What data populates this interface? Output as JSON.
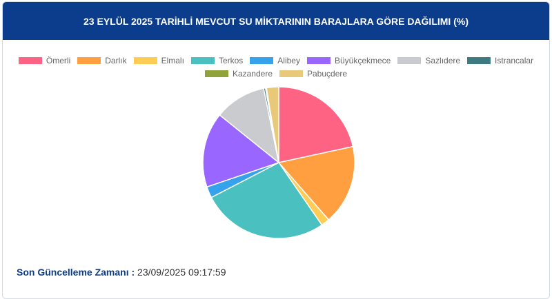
{
  "header": {
    "title": "23 EYLÜL 2025 TARİHLİ MEVCUT SU MİKTARININ BARAJLARA GÖRE DAĞILIMI (%)"
  },
  "chart_data": {
    "type": "pie",
    "categories": [
      "Ömerli",
      "Darlık",
      "Elmalı",
      "Terkos",
      "Alibey",
      "Büyükçekmece",
      "Sazlıdere",
      "Istrancalar",
      "Kazandere",
      "Pabuçdere"
    ],
    "values": [
      21.6,
      17,
      1.8,
      27,
      2.4,
      16,
      11,
      0.4,
      0.2,
      2.6
    ],
    "colors": [
      "#ff6384",
      "#ff9f40",
      "#ffcd56",
      "#4bc0c0",
      "#36a2eb",
      "#9966ff",
      "#c9cbcf",
      "#3e7b80",
      "#8fa33a",
      "#e8c97a"
    ]
  },
  "footer": {
    "label": "Son Güncelleme Zamanı :",
    "value": "23/09/2025 09:17:59"
  }
}
